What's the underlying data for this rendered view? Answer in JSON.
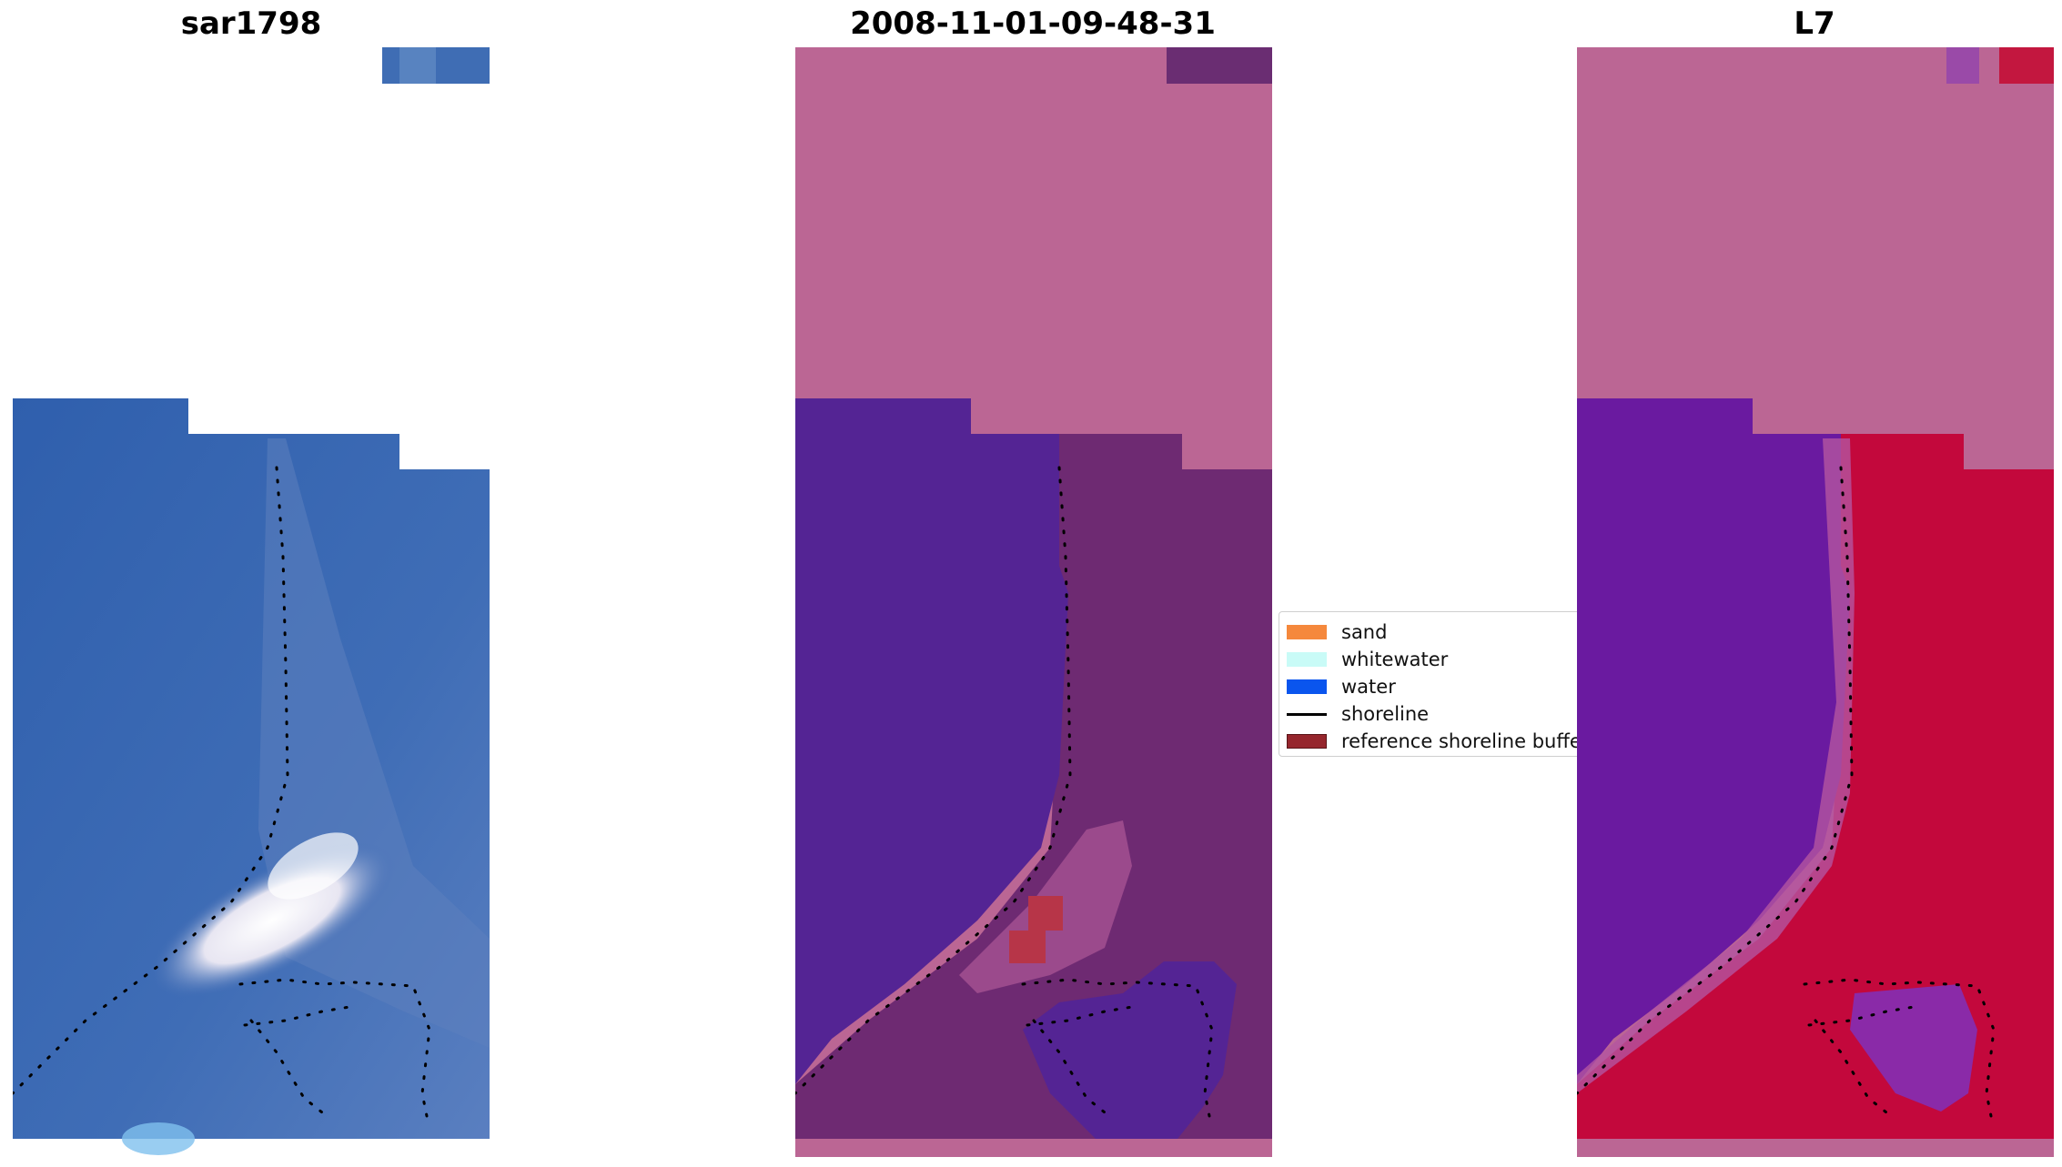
{
  "panels": {
    "sar": {
      "title": "sar1798"
    },
    "classified": {
      "title": "2008-11-01-09-48-31"
    },
    "satellite": {
      "title": "L7"
    }
  },
  "legend": {
    "items": [
      {
        "label": "sand",
        "color": "#f5883c",
        "kind": "patch"
      },
      {
        "label": "whitewater",
        "color": "#c9fbf7",
        "kind": "patch"
      },
      {
        "label": "water",
        "color": "#0a55ee",
        "kind": "patch"
      },
      {
        "label": "shoreline",
        "color": "#000000",
        "kind": "line"
      },
      {
        "label": "reference shoreline buffer",
        "color": "#96262d",
        "kind": "patch"
      }
    ]
  },
  "colors": {
    "sar_water": "#3a68b2",
    "sar_whitewater": "#f4f2f7",
    "buffer_overlay": "#bb6694",
    "classified_water": "#542494",
    "classified_land": "#6e2a72",
    "satellite_water": "#6a1aa0",
    "satellite_land": "#c3083c"
  }
}
